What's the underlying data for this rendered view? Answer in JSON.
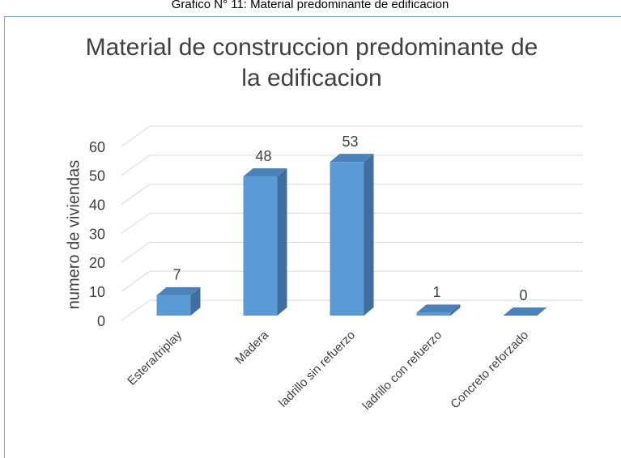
{
  "caption": "Grafico N° 11: Material predominante de edificacion",
  "chart_data": {
    "type": "bar3d",
    "title": "Material de construccion predominante de la edificacion",
    "y_label": "numero de viviendas",
    "categories": [
      "Estera/triplay",
      "Madera",
      "ladrillo sin refuerzo",
      "ladrillo con refuerzo",
      "Concreto reforzado"
    ],
    "values": [
      7,
      48,
      53,
      1,
      0
    ],
    "color": "#5b9bd5",
    "ylim": [
      0,
      60
    ],
    "yticks": [
      0,
      10,
      20,
      30,
      40,
      50,
      60
    ],
    "grid": true
  }
}
